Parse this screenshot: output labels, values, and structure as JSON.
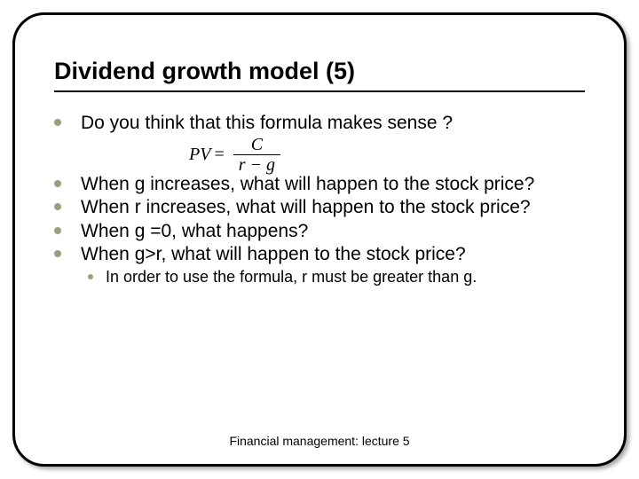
{
  "slide": {
    "title": "Dividend growth model (5)",
    "bullets": [
      "Do you think that this formula makes sense ?",
      "When g increases, what will happen to the stock price?",
      "When r increases, what will happen to the stock price?",
      "When g =0, what happens?",
      "When g>r, what will happen to the stock price?"
    ],
    "formula": {
      "lhs": "PV",
      "eq": "=",
      "num": "C",
      "den": "r − g"
    },
    "sub_bullet": "In order to use the formula, r must be greater than g.",
    "footer": "Financial management: lecture 5"
  },
  "style": {
    "bullet_color": "#9aa07d",
    "title_fontsize": 27,
    "body_fontsize": 21,
    "sub_fontsize": 18,
    "footer_fontsize": 14,
    "frame_border_radius": 36,
    "frame_border_color": "#000000",
    "background_color": "#ffffff"
  }
}
